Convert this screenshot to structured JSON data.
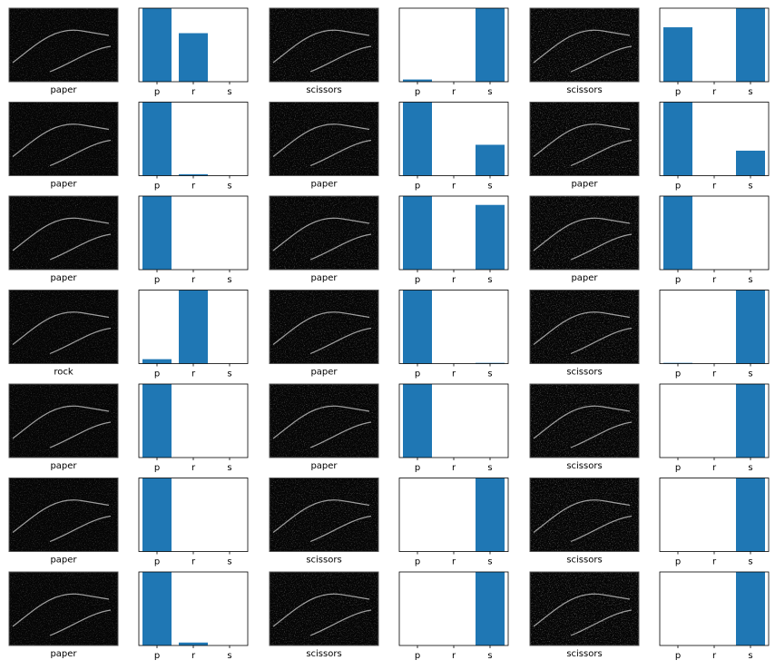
{
  "chart_data": [
    {
      "type": "bar",
      "image_label": "paper",
      "categories": [
        "p",
        "r",
        "s"
      ],
      "values": [
        1.0,
        0.66,
        0
      ],
      "color": "#1f77b4",
      "ylim": [
        0,
        1
      ]
    },
    {
      "type": "bar",
      "image_label": "scissors",
      "categories": [
        "p",
        "r",
        "s"
      ],
      "values": [
        0.03,
        0,
        1.0
      ],
      "color": "#1f77b4",
      "ylim": [
        0,
        1
      ]
    },
    {
      "type": "bar",
      "image_label": "scissors",
      "categories": [
        "p",
        "r",
        "s"
      ],
      "values": [
        0.74,
        0,
        1.0
      ],
      "color": "#1f77b4",
      "ylim": [
        0,
        1
      ]
    },
    {
      "type": "bar",
      "image_label": "paper",
      "categories": [
        "p",
        "r",
        "s"
      ],
      "values": [
        1.0,
        0.02,
        0
      ],
      "color": "#1f77b4",
      "ylim": [
        0,
        1
      ]
    },
    {
      "type": "bar",
      "image_label": "paper",
      "categories": [
        "p",
        "r",
        "s"
      ],
      "values": [
        1.0,
        0,
        0.42
      ],
      "color": "#1f77b4",
      "ylim": [
        0,
        1
      ]
    },
    {
      "type": "bar",
      "image_label": "paper",
      "categories": [
        "p",
        "r",
        "s"
      ],
      "values": [
        1.0,
        0,
        0.34
      ],
      "color": "#1f77b4",
      "ylim": [
        0,
        1
      ]
    },
    {
      "type": "bar",
      "image_label": "paper",
      "categories": [
        "p",
        "r",
        "s"
      ],
      "values": [
        1.0,
        0,
        0
      ],
      "color": "#1f77b4",
      "ylim": [
        0,
        1
      ]
    },
    {
      "type": "bar",
      "image_label": "paper",
      "categories": [
        "p",
        "r",
        "s"
      ],
      "values": [
        1.0,
        0,
        0.88
      ],
      "color": "#1f77b4",
      "ylim": [
        0,
        1
      ]
    },
    {
      "type": "bar",
      "image_label": "paper",
      "categories": [
        "p",
        "r",
        "s"
      ],
      "values": [
        1.0,
        0,
        0
      ],
      "color": "#1f77b4",
      "ylim": [
        0,
        1
      ]
    },
    {
      "type": "bar",
      "image_label": "rock",
      "categories": [
        "p",
        "r",
        "s"
      ],
      "values": [
        0.06,
        1.0,
        0
      ],
      "color": "#1f77b4",
      "ylim": [
        0,
        1
      ]
    },
    {
      "type": "bar",
      "image_label": "paper",
      "categories": [
        "p",
        "r",
        "s"
      ],
      "values": [
        1.0,
        0,
        0.01
      ],
      "color": "#1f77b4",
      "ylim": [
        0,
        1
      ]
    },
    {
      "type": "bar",
      "image_label": "scissors",
      "categories": [
        "p",
        "r",
        "s"
      ],
      "values": [
        0.01,
        0,
        1.0
      ],
      "color": "#1f77b4",
      "ylim": [
        0,
        1
      ]
    },
    {
      "type": "bar",
      "image_label": "paper",
      "categories": [
        "p",
        "r",
        "s"
      ],
      "values": [
        1.0,
        0,
        0
      ],
      "color": "#1f77b4",
      "ylim": [
        0,
        1
      ]
    },
    {
      "type": "bar",
      "image_label": "paper",
      "categories": [
        "p",
        "r",
        "s"
      ],
      "values": [
        1.0,
        0,
        0
      ],
      "color": "#1f77b4",
      "ylim": [
        0,
        1
      ]
    },
    {
      "type": "bar",
      "image_label": "scissors",
      "categories": [
        "p",
        "r",
        "s"
      ],
      "values": [
        0,
        0,
        1.0
      ],
      "color": "#1f77b4",
      "ylim": [
        0,
        1
      ]
    },
    {
      "type": "bar",
      "image_label": "paper",
      "categories": [
        "p",
        "r",
        "s"
      ],
      "values": [
        1.0,
        0,
        0
      ],
      "color": "#1f77b4",
      "ylim": [
        0,
        1
      ]
    },
    {
      "type": "bar",
      "image_label": "scissors",
      "categories": [
        "p",
        "r",
        "s"
      ],
      "values": [
        0,
        0,
        1.0
      ],
      "color": "#1f77b4",
      "ylim": [
        0,
        1
      ]
    },
    {
      "type": "bar",
      "image_label": "scissors",
      "categories": [
        "p",
        "r",
        "s"
      ],
      "values": [
        0,
        0,
        1.0
      ],
      "color": "#1f77b4",
      "ylim": [
        0,
        1
      ]
    },
    {
      "type": "bar",
      "image_label": "paper",
      "categories": [
        "p",
        "r",
        "s"
      ],
      "values": [
        1.0,
        0.04,
        0
      ],
      "color": "#1f77b4",
      "ylim": [
        0,
        1
      ]
    },
    {
      "type": "bar",
      "image_label": "scissors",
      "categories": [
        "p",
        "r",
        "s"
      ],
      "values": [
        0,
        0,
        1.0
      ],
      "color": "#1f77b4",
      "ylim": [
        0,
        1
      ]
    },
    {
      "type": "bar",
      "image_label": "scissors",
      "categories": [
        "p",
        "r",
        "s"
      ],
      "values": [
        0,
        0,
        1.0
      ],
      "color": "#1f77b4",
      "ylim": [
        0,
        1
      ]
    }
  ]
}
